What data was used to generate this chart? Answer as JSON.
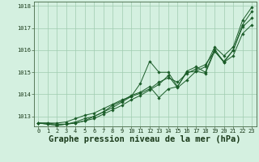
{
  "title": "Graphe pression niveau de la mer (hPa)",
  "background_color": "#d4f0e0",
  "plot_bg_color": "#d4f0e0",
  "grid_color": "#a0ccb0",
  "line_color": "#1a5c28",
  "xlim": [
    -0.5,
    23.5
  ],
  "ylim": [
    1012.55,
    1018.2
  ],
  "yticks": [
    1013,
    1014,
    1015,
    1016,
    1017,
    1018
  ],
  "xticks": [
    0,
    1,
    2,
    3,
    4,
    5,
    6,
    7,
    8,
    9,
    10,
    11,
    12,
    13,
    14,
    15,
    16,
    17,
    18,
    19,
    20,
    21,
    22,
    23
  ],
  "series": [
    [
      1012.7,
      1012.7,
      1012.65,
      1012.65,
      1012.7,
      1012.8,
      1012.9,
      1013.1,
      1013.3,
      1013.5,
      1013.75,
      1013.95,
      1014.2,
      1014.45,
      1014.85,
      1014.3,
      1014.65,
      1015.05,
      1014.95,
      1015.95,
      1015.5,
      1016.0,
      1017.05,
      1017.45
    ],
    [
      1012.7,
      1012.65,
      1012.6,
      1012.65,
      1012.7,
      1012.8,
      1013.0,
      1013.2,
      1013.4,
      1013.65,
      1013.9,
      1014.5,
      1015.5,
      1015.0,
      1015.0,
      1014.35,
      1015.05,
      1015.25,
      1015.0,
      1016.05,
      1015.45,
      1016.0,
      1017.15,
      1017.75
    ],
    [
      1012.7,
      1012.65,
      1012.6,
      1012.65,
      1012.75,
      1012.9,
      1013.0,
      1013.2,
      1013.5,
      1013.7,
      1013.95,
      1014.1,
      1014.35,
      1013.85,
      1014.25,
      1014.35,
      1015.0,
      1015.05,
      1015.25,
      1016.15,
      1015.75,
      1016.15,
      1017.35,
      1017.95
    ],
    [
      1012.7,
      1012.7,
      1012.7,
      1012.75,
      1012.9,
      1013.05,
      1013.15,
      1013.35,
      1013.55,
      1013.75,
      1013.9,
      1014.05,
      1014.25,
      1014.55,
      1014.75,
      1014.55,
      1014.95,
      1015.15,
      1015.35,
      1015.95,
      1015.45,
      1015.75,
      1016.75,
      1017.15
    ]
  ]
}
